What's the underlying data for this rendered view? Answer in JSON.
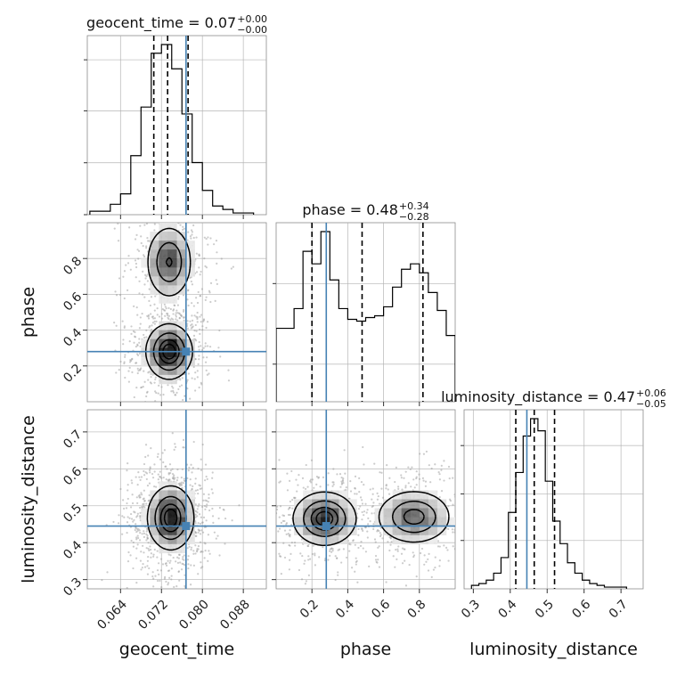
{
  "chart_data": {
    "type": "corner",
    "truth_color": "#4682b4",
    "hist_color": "#000000",
    "parameters": [
      {
        "name": "geocent_time",
        "title": "geocent_time = 0.07",
        "title_sup": "+0.00",
        "title_sub": "−0.00",
        "range": [
          0.0575,
          0.0925
        ],
        "ticks": [
          0.064,
          0.072,
          0.08,
          0.088
        ],
        "tick_labels": [
          "0.064",
          "0.072",
          "0.080",
          "0.088"
        ],
        "truth": 0.0768,
        "quantiles": [
          0.0705,
          0.0732,
          0.0772
        ],
        "hist_bins": [
          0.059,
          0.061,
          0.063,
          0.065,
          0.067,
          0.069,
          0.071,
          0.073,
          0.075,
          0.077,
          0.079,
          0.081,
          0.083,
          0.085,
          0.087,
          0.089
        ],
        "hist_counts": [
          0.02,
          0.02,
          0.06,
          0.12,
          0.34,
          0.62,
          0.93,
          0.98,
          0.84,
          0.58,
          0.3,
          0.14,
          0.05,
          0.03,
          0.01,
          0.01
        ]
      },
      {
        "name": "phase",
        "title": "phase = 0.48",
        "title_sup": "+0.34",
        "title_sub": "−0.28",
        "range": [
          0.0,
          1.0
        ],
        "ticks": [
          0.2,
          0.4,
          0.6,
          0.8
        ],
        "tick_labels": [
          "0.2",
          "0.4",
          "0.6",
          "0.8"
        ],
        "truth": 0.28,
        "quantiles": [
          0.2,
          0.48,
          0.82
        ],
        "hist_bins": [
          0.025,
          0.075,
          0.125,
          0.175,
          0.225,
          0.275,
          0.325,
          0.375,
          0.425,
          0.475,
          0.525,
          0.575,
          0.625,
          0.675,
          0.725,
          0.775,
          0.825,
          0.875,
          0.925,
          0.975
        ],
        "hist_counts": [
          0.41,
          0.41,
          0.52,
          0.84,
          0.77,
          0.95,
          0.68,
          0.52,
          0.46,
          0.45,
          0.47,
          0.48,
          0.53,
          0.64,
          0.74,
          0.77,
          0.72,
          0.61,
          0.51,
          0.37
        ]
      },
      {
        "name": "luminosity_distance",
        "title": "luminosity_distance = 0.47",
        "title_sup": "+0.06",
        "title_sub": "−0.05",
        "range": [
          0.275,
          0.76
        ],
        "ticks": [
          0.3,
          0.4,
          0.5,
          0.6,
          0.7
        ],
        "tick_labels": [
          "0.3",
          "0.4",
          "0.5",
          "0.6",
          "0.7"
        ],
        "truth": 0.445,
        "quantiles": [
          0.415,
          0.465,
          0.52
        ],
        "hist_bins": [
          0.305,
          0.325,
          0.345,
          0.365,
          0.385,
          0.405,
          0.425,
          0.445,
          0.465,
          0.485,
          0.505,
          0.525,
          0.545,
          0.565,
          0.585,
          0.605,
          0.625,
          0.645,
          0.665,
          0.685,
          0.705
        ],
        "hist_counts": [
          0.02,
          0.03,
          0.05,
          0.09,
          0.18,
          0.44,
          0.67,
          0.88,
          0.98,
          0.91,
          0.62,
          0.39,
          0.26,
          0.15,
          0.09,
          0.05,
          0.03,
          0.02,
          0.01,
          0.01,
          0.01
        ]
      }
    ],
    "pairs": [
      {
        "x": "geocent_time",
        "y": "phase",
        "blobs": [
          {
            "cx": 0.0735,
            "cy": 0.28,
            "sx": 0.0022,
            "sy": 0.075,
            "w": 1.0
          },
          {
            "cx": 0.0735,
            "cy": 0.78,
            "sx": 0.0022,
            "sy": 0.1,
            "w": 0.7
          }
        ]
      },
      {
        "x": "geocent_time",
        "y": "luminosity_distance",
        "blobs": [
          {
            "cx": 0.0738,
            "cy": 0.467,
            "sx": 0.0022,
            "sy": 0.042,
            "w": 1.0
          }
        ]
      },
      {
        "x": "phase",
        "y": "luminosity_distance",
        "blobs": [
          {
            "cx": 0.27,
            "cy": 0.465,
            "sx": 0.085,
            "sy": 0.035,
            "w": 1.0
          },
          {
            "cx": 0.77,
            "cy": 0.47,
            "sx": 0.1,
            "sy": 0.035,
            "w": 0.8
          }
        ]
      }
    ],
    "contour_levels": [
      0.12,
      0.39,
      0.68,
      0.86
    ]
  }
}
